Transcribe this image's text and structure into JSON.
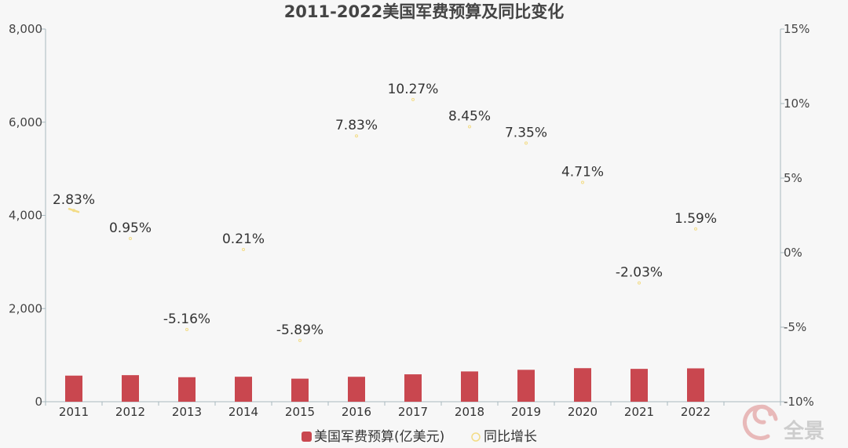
{
  "chart_data": {
    "type": "bar",
    "title": "2011-2022美国军费预算及同比变化",
    "categories": [
      "2011",
      "2012",
      "2013",
      "2014",
      "2015",
      "2016",
      "2017",
      "2018",
      "2019",
      "2020",
      "2021",
      "2022"
    ],
    "series": [
      {
        "name": "美国军费预算(亿美元)",
        "type": "bar",
        "axis": "left",
        "values": [
          560,
          570,
          526,
          536,
          495,
          535,
          588,
          650,
          685,
          720,
          705,
          716
        ]
      },
      {
        "name": "同比增长",
        "type": "line",
        "axis": "right",
        "values": [
          2.83,
          0.95,
          -5.16,
          0.21,
          -5.89,
          7.83,
          10.27,
          8.45,
          7.35,
          4.71,
          -2.03,
          1.59
        ],
        "labels": [
          "2.83%",
          "0.95%",
          "-5.16%",
          "0.21%",
          "-5.89%",
          "7.83%",
          "10.27%",
          "8.45%",
          "7.35%",
          "4.71%",
          "-2.03%",
          "1.59%"
        ]
      }
    ],
    "y_left": {
      "min": 0,
      "max": 8000,
      "ticks": [
        0,
        2000,
        4000,
        6000,
        8000
      ],
      "tick_labels": [
        "0",
        "2,000",
        "4,000",
        "6,000",
        "8,000"
      ]
    },
    "y_right": {
      "min": -10,
      "max": 15,
      "ticks": [
        -10,
        -5,
        0,
        5,
        10,
        15
      ],
      "tick_labels": [
        "-10%",
        "-5%",
        "0%",
        "5%",
        "10%",
        "15%"
      ]
    },
    "legend_position": "bottom-center",
    "grid": false,
    "colors": {
      "bar": "#c9474f",
      "line_marker": "#f3dc86",
      "axis": "#a9b9bf"
    }
  },
  "watermark": {
    "text": "全景",
    "icon": "swirl-logo-icon"
  }
}
